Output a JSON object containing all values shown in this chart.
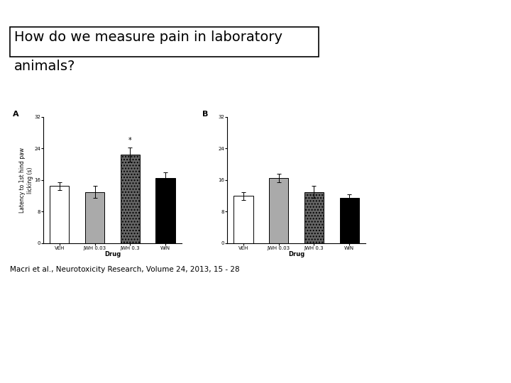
{
  "title_line1": "How do we measure pain in laboratory",
  "title_line2": "animals?",
  "citation": "Macri et al., Neurotoxicity Research, Volume 24, 2013, 15 - 28",
  "panel_A": {
    "label": "A",
    "categories": [
      "VEH",
      "JWH 0.03",
      "JWH 0.3",
      "WIN"
    ],
    "values": [
      14.5,
      13.0,
      22.5,
      16.5
    ],
    "errors": [
      1.0,
      1.5,
      1.8,
      1.5
    ],
    "ylabel": "Latency to 1st hind paw\nlicking (s)",
    "xlabel": "Drug",
    "ylim": [
      0,
      32
    ],
    "yticks": [
      0,
      8,
      16,
      24,
      32
    ],
    "star_bar": 2
  },
  "panel_B": {
    "label": "B",
    "categories": [
      "VEH",
      "JWH 0.03",
      "JWH 0.3",
      "WIN"
    ],
    "values": [
      12.0,
      16.5,
      13.0,
      11.5
    ],
    "errors": [
      1.0,
      1.0,
      1.5,
      0.8
    ],
    "xlabel": "Drug",
    "ylim": [
      0,
      32
    ],
    "yticks": [
      0,
      8,
      16,
      24,
      32
    ]
  },
  "bg_color": "#ffffff",
  "title_fontsize": 14,
  "axis_label_fontsize": 5.5,
  "tick_fontsize": 5,
  "citation_fontsize": 7.5,
  "bar_width": 0.55,
  "panel_label_fontsize": 8
}
